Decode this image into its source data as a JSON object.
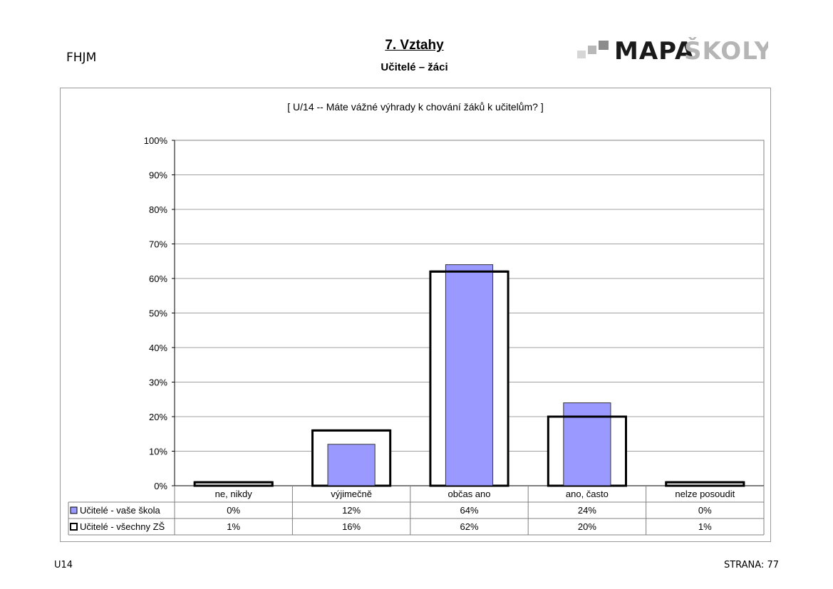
{
  "header": {
    "school_code": "FHJM",
    "section_title": "7. Vztahy",
    "section_subtitle": "Učitelé – žáci",
    "logo_text_dark": "MAPA",
    "logo_text_light": "ŠKOLY"
  },
  "footer": {
    "left": "U14",
    "right": "STRANA: 77"
  },
  "chart_data": {
    "type": "bar",
    "title": "[ U/14 -- Máte vážné výhrady k chování žáků k učitelům? ]",
    "categories": [
      "ne, nikdy",
      "výjimečně",
      "občas ano",
      "ano, často",
      "nelze posoudit"
    ],
    "ylim": [
      0,
      100
    ],
    "yticks": [
      "0%",
      "10%",
      "20%",
      "30%",
      "40%",
      "50%",
      "60%",
      "70%",
      "80%",
      "90%",
      "100%"
    ],
    "grid": true,
    "legend": "data-table",
    "series": [
      {
        "name": "Učitelé - vaše škola",
        "values": [
          0,
          12,
          64,
          24,
          0
        ],
        "labels": [
          "0%",
          "12%",
          "64%",
          "24%",
          "0%"
        ],
        "fill": "#9999ff",
        "style": "filled"
      },
      {
        "name": "Učitelé - všechny ZŠ",
        "values": [
          1,
          16,
          62,
          20,
          1
        ],
        "labels": [
          "1%",
          "16%",
          "62%",
          "20%",
          "1%"
        ],
        "fill": "#ffffff",
        "style": "outline"
      }
    ]
  }
}
